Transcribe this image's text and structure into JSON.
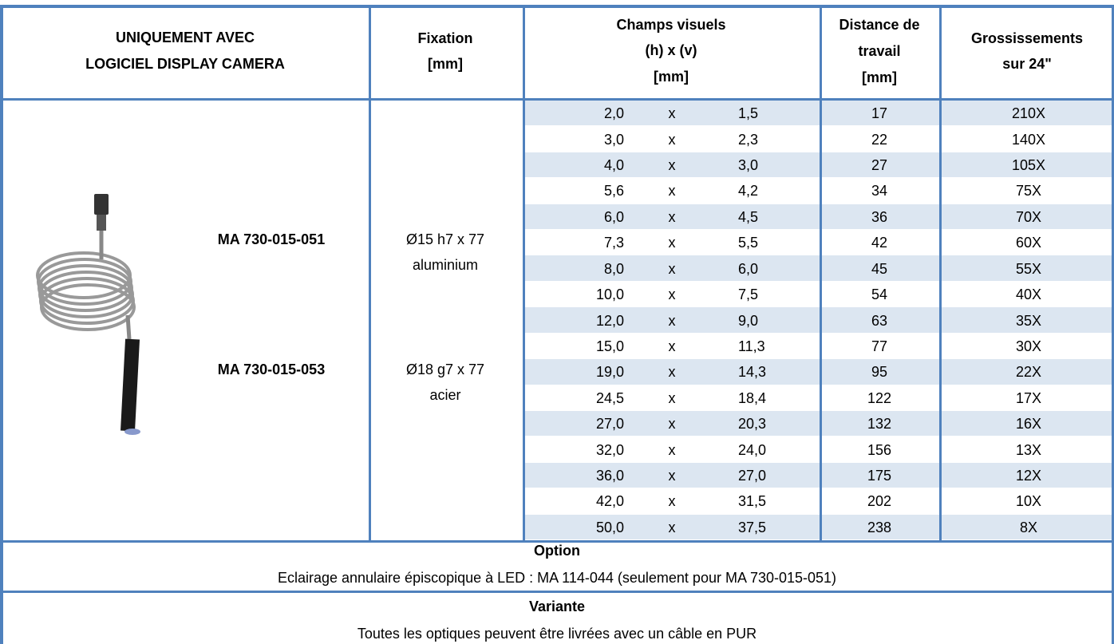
{
  "header": {
    "product": [
      "UNIQUEMENT AVEC",
      "LOGICIEL DISPLAY CAMERA"
    ],
    "mount": [
      "Fixation",
      "[mm]"
    ],
    "field": [
      "Champs visuels",
      "(h) x (v)",
      "[mm]"
    ],
    "distance": [
      "Distance de",
      "travail",
      "[mm]"
    ],
    "magnification": [
      "Grossissements",
      "sur 24\""
    ]
  },
  "products": [
    {
      "model": "MA 730-015-051",
      "mount": [
        "Ø15 h7 x 77",
        "aluminium"
      ]
    },
    {
      "model": "MA 730-015-053",
      "mount": [
        "Ø18 g7 x 77",
        "acier"
      ]
    }
  ],
  "rows": [
    [
      "2,0",
      "x",
      "1,5",
      "17",
      "210X"
    ],
    [
      "3,0",
      "x",
      "2,3",
      "22",
      "140X"
    ],
    [
      "4,0",
      "x",
      "3,0",
      "27",
      "105X"
    ],
    [
      "5,6",
      "x",
      "4,2",
      "34",
      "75X"
    ],
    [
      "6,0",
      "x",
      "4,5",
      "36",
      "70X"
    ],
    [
      "7,3",
      "x",
      "5,5",
      "42",
      "60X"
    ],
    [
      "8,0",
      "x",
      "6,0",
      "45",
      "55X"
    ],
    [
      "10,0",
      "x",
      "7,5",
      "54",
      "40X"
    ],
    [
      "12,0",
      "x",
      "9,0",
      "63",
      "35X"
    ],
    [
      "15,0",
      "x",
      "11,3",
      "77",
      "30X"
    ],
    [
      "19,0",
      "x",
      "14,3",
      "95",
      "22X"
    ],
    [
      "24,5",
      "x",
      "18,4",
      "122",
      "17X"
    ],
    [
      "27,0",
      "x",
      "20,3",
      "132",
      "16X"
    ],
    [
      "32,0",
      "x",
      "24,0",
      "156",
      "13X"
    ],
    [
      "36,0",
      "x",
      "27,0",
      "175",
      "12X"
    ],
    [
      "42,0",
      "x",
      "31,5",
      "202",
      "10X"
    ],
    [
      "50,0",
      "x",
      "37,5",
      "238",
      "8X"
    ]
  ],
  "option": {
    "title": "Option",
    "text": "Eclairage annulaire épiscopique à LED : MA 114-044 (seulement pour MA 730-015-051)"
  },
  "variant": {
    "title": "Variante",
    "text": "Toutes les optiques peuvent être livrées avec un câble en PUR"
  }
}
